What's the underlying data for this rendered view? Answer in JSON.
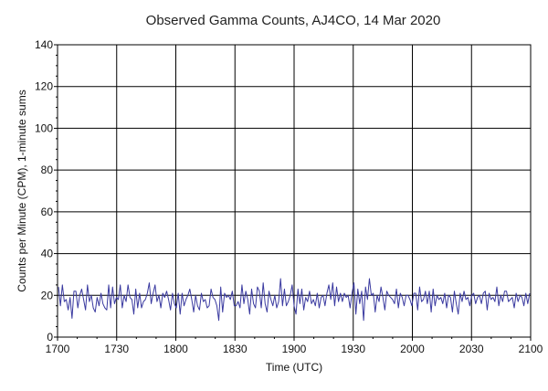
{
  "chart_data": {
    "type": "line",
    "title": "Observed Gamma Counts, AJ4CO, 14 Mar 2020",
    "xlabel": "Time (UTC)",
    "ylabel": "Counts per Minute (CPM), 1-minute sums",
    "x_start_label": "1700",
    "x_end_label": "2100",
    "xlim_minutes": [
      0,
      240
    ],
    "x_ticks": [
      {
        "label": "1700",
        "minute": 0
      },
      {
        "label": "1730",
        "minute": 30
      },
      {
        "label": "1800",
        "minute": 60
      },
      {
        "label": "1830",
        "minute": 90
      },
      {
        "label": "1900",
        "minute": 120
      },
      {
        "label": "1930",
        "minute": 150
      },
      {
        "label": "2000",
        "minute": 180
      },
      {
        "label": "2030",
        "minute": 210
      },
      {
        "label": "2100",
        "minute": 240
      }
    ],
    "ylim": [
      0,
      140
    ],
    "y_ticks": [
      0,
      20,
      40,
      60,
      80,
      100,
      120,
      140
    ],
    "grid": true,
    "series": [
      {
        "color": "#3a3aa0",
        "values": [
          24,
          15,
          25,
          17,
          18,
          13,
          19,
          9,
          22,
          22,
          14,
          20,
          23,
          18,
          13,
          25,
          17,
          20,
          14,
          12,
          19,
          15,
          21,
          16,
          14,
          13,
          25,
          14,
          24,
          16,
          19,
          18,
          25,
          14,
          20,
          17,
          25,
          19,
          18,
          11,
          23,
          14,
          21,
          14,
          17,
          18,
          21,
          26,
          16,
          21,
          25,
          17,
          20,
          14,
          21,
          19,
          22,
          18,
          13,
          21,
          16,
          14,
          21,
          11,
          21,
          15,
          18,
          20,
          23,
          18,
          12,
          20,
          15,
          13,
          21,
          17,
          18,
          14,
          15,
          23,
          19,
          18,
          15,
          8,
          24,
          12,
          21,
          19,
          20,
          18,
          22,
          15,
          15,
          17,
          14,
          25,
          16,
          22,
          18,
          11,
          23,
          16,
          14,
          24,
          22,
          14,
          26,
          16,
          12,
          22,
          18,
          15,
          20,
          14,
          17,
          28,
          15,
          23,
          15,
          17,
          20,
          25,
          15,
          11,
          23,
          16,
          23,
          13,
          19,
          17,
          22,
          16,
          18,
          15,
          21,
          14,
          19,
          20,
          15,
          21,
          25,
          18,
          26,
          15,
          24,
          17,
          21,
          17,
          21,
          19,
          20,
          14,
          21,
          26,
          11,
          23,
          16,
          22,
          8,
          24,
          18,
          28,
          20,
          21,
          12,
          20,
          17,
          24,
          19,
          13,
          22,
          20,
          19,
          18,
          16,
          23,
          14,
          21,
          19,
          15,
          20,
          20,
          18,
          15,
          21,
          21,
          13,
          24,
          17,
          18,
          22,
          16,
          22,
          12,
          23,
          15,
          20,
          18,
          19,
          16,
          21,
          14,
          20,
          19,
          12,
          22,
          16,
          11,
          21,
          17,
          22,
          18,
          19,
          15,
          20,
          21,
          16,
          19,
          20,
          16,
          21,
          22,
          13,
          21,
          18,
          19,
          17,
          24,
          15,
          20,
          17,
          22,
          22,
          17,
          18,
          19,
          14,
          21,
          17,
          20,
          19,
          15,
          21,
          16,
          21
        ]
      }
    ]
  }
}
